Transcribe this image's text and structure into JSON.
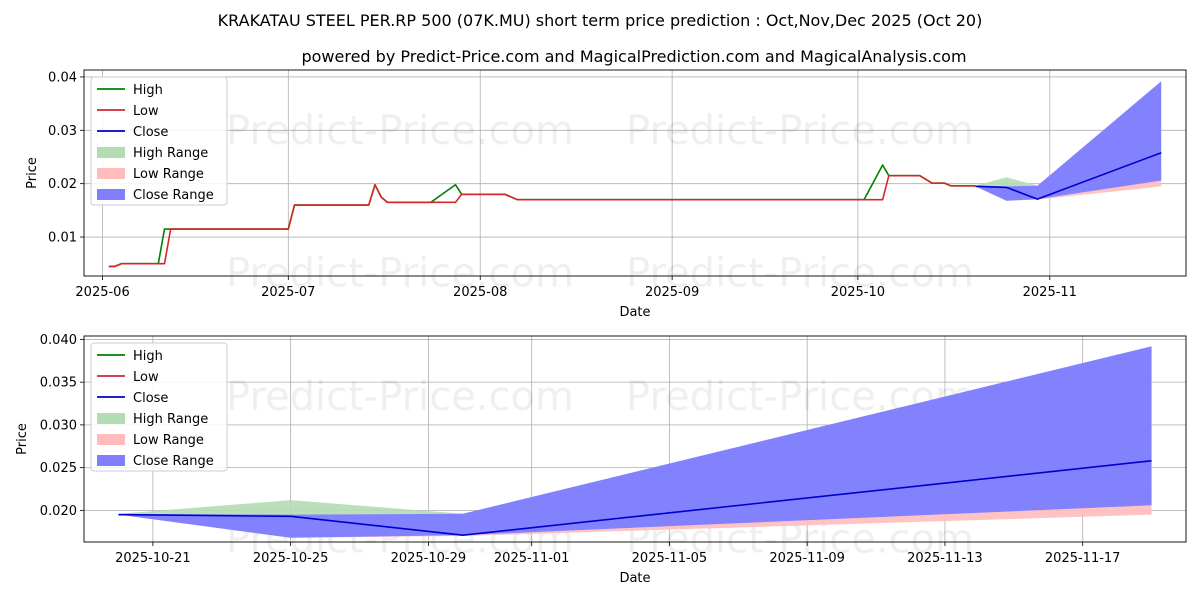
{
  "title": "KRAKATAU STEEL PER.RP 500 (07K.MU) short term price prediction : Oct,Nov,Dec 2025 (Oct 20)",
  "subtitle": "powered by Predict-Price.com and MagicalPrediction.com and MagicalAnalysis.com",
  "watermark": "Predict-Price.com",
  "colors": {
    "high": "#008000",
    "low": "#d62728",
    "close": "#0000cc",
    "high_range": "#b4dcb4",
    "low_range": "#ffbcbc",
    "close_range": "#8080ff"
  },
  "legend": [
    "High",
    "Low",
    "Close",
    "High Range",
    "Low Range",
    "Close Range"
  ],
  "chart_data": [
    {
      "type": "line",
      "xlabel": "Date",
      "ylabel": "Price",
      "legend_position": "upper-left",
      "grid": true,
      "xlim": [
        "2025-05-29",
        "2025-11-23"
      ],
      "ylim": [
        0.0027,
        0.0413
      ],
      "xticks": [
        "2025-06",
        "2025-07",
        "2025-08",
        "2025-09",
        "2025-10",
        "2025-11"
      ],
      "xtick_dates": [
        "2025-06-01",
        "2025-07-01",
        "2025-08-01",
        "2025-09-01",
        "2025-10-01",
        "2025-11-01"
      ],
      "yticks": [
        "0.01",
        "0.02",
        "0.03",
        "0.04"
      ],
      "ytick_values": [
        0.01,
        0.02,
        0.03,
        0.04
      ],
      "series": [
        {
          "name": "High",
          "points": [
            [
              "2025-06-02",
              0.0045
            ],
            [
              "2025-06-03",
              0.0045
            ],
            [
              "2025-06-04",
              0.005
            ],
            [
              "2025-06-10",
              0.005
            ],
            [
              "2025-06-11",
              0.0115
            ],
            [
              "2025-07-01",
              0.0115
            ],
            [
              "2025-07-02",
              0.016
            ],
            [
              "2025-07-14",
              0.016
            ],
            [
              "2025-07-15",
              0.0198
            ],
            [
              "2025-07-16",
              0.0175
            ],
            [
              "2025-07-17",
              0.0165
            ],
            [
              "2025-07-24",
              0.0165
            ],
            [
              "2025-07-28",
              0.0198
            ],
            [
              "2025-07-29",
              0.018
            ],
            [
              "2025-08-05",
              0.018
            ],
            [
              "2025-08-07",
              0.017
            ],
            [
              "2025-10-02",
              0.017
            ],
            [
              "2025-10-05",
              0.0235
            ],
            [
              "2025-10-06",
              0.0215
            ],
            [
              "2025-10-11",
              0.0215
            ],
            [
              "2025-10-13",
              0.0201
            ],
            [
              "2025-10-15",
              0.0201
            ],
            [
              "2025-10-16",
              0.0196
            ],
            [
              "2025-10-20",
              0.0196
            ]
          ]
        },
        {
          "name": "Low",
          "points": [
            [
              "2025-06-02",
              0.0045
            ],
            [
              "2025-06-03",
              0.0045
            ],
            [
              "2025-06-04",
              0.005
            ],
            [
              "2025-06-11",
              0.005
            ],
            [
              "2025-06-12",
              0.0115
            ],
            [
              "2025-07-01",
              0.0115
            ],
            [
              "2025-07-02",
              0.016
            ],
            [
              "2025-07-14",
              0.016
            ],
            [
              "2025-07-15",
              0.0198
            ],
            [
              "2025-07-16",
              0.0175
            ],
            [
              "2025-07-17",
              0.0165
            ],
            [
              "2025-07-28",
              0.0165
            ],
            [
              "2025-07-29",
              0.018
            ],
            [
              "2025-08-05",
              0.018
            ],
            [
              "2025-08-07",
              0.017
            ],
            [
              "2025-10-05",
              0.017
            ],
            [
              "2025-10-06",
              0.0215
            ],
            [
              "2025-10-11",
              0.0215
            ],
            [
              "2025-10-13",
              0.0201
            ],
            [
              "2025-10-15",
              0.0201
            ],
            [
              "2025-10-16",
              0.0196
            ],
            [
              "2025-10-20",
              0.0196
            ]
          ]
        },
        {
          "name": "Close",
          "points": [
            [
              "2025-10-20",
              0.0195
            ],
            [
              "2025-10-25",
              0.0193
            ],
            [
              "2025-10-30",
              0.0171
            ],
            [
              "2025-11-19",
              0.0258
            ]
          ]
        }
      ],
      "ranges": [
        {
          "name": "High Range",
          "x": [
            "2025-10-20",
            "2025-10-25",
            "2025-10-30",
            "2025-11-19"
          ],
          "upper": [
            0.0196,
            0.0212,
            0.0196,
            0.0196
          ],
          "lower": [
            0.0195,
            0.0193,
            0.0195,
            0.0196
          ]
        },
        {
          "name": "Low Range",
          "x": [
            "2025-10-20",
            "2025-10-25",
            "2025-10-30",
            "2025-11-19"
          ],
          "upper": [
            0.0195,
            0.0193,
            0.0175,
            0.0228
          ],
          "lower": [
            0.0195,
            0.0168,
            0.017,
            0.0195
          ]
        },
        {
          "name": "Close Range",
          "x": [
            "2025-10-20",
            "2025-10-25",
            "2025-10-30",
            "2025-11-19"
          ],
          "upper": [
            0.0196,
            0.0195,
            0.0196,
            0.0392
          ],
          "lower": [
            0.0195,
            0.0168,
            0.0171,
            0.0206
          ]
        }
      ]
    },
    {
      "type": "line",
      "xlabel": "Date",
      "ylabel": "Price",
      "legend_position": "upper-left",
      "grid": true,
      "xlim": [
        "2025-10-19",
        "2025-11-20"
      ],
      "ylim": [
        0.0163,
        0.0404
      ],
      "xticks": [
        "2025-10-21",
        "2025-10-25",
        "2025-10-29",
        "2025-11-01",
        "2025-11-05",
        "2025-11-09",
        "2025-11-13",
        "2025-11-17"
      ],
      "xtick_dates": [
        "2025-10-21",
        "2025-10-25",
        "2025-10-29",
        "2025-11-01",
        "2025-11-05",
        "2025-11-09",
        "2025-11-13",
        "2025-11-17"
      ],
      "yticks": [
        "0.020",
        "0.025",
        "0.030",
        "0.035",
        "0.040"
      ],
      "ytick_values": [
        0.02,
        0.025,
        0.03,
        0.035,
        0.04
      ],
      "series": [
        {
          "name": "Close",
          "points": [
            [
              "2025-10-20",
              0.0195
            ],
            [
              "2025-10-25",
              0.0193
            ],
            [
              "2025-10-30",
              0.0171
            ],
            [
              "2025-11-19",
              0.0258
            ]
          ]
        }
      ],
      "ranges": [
        {
          "name": "High Range",
          "x": [
            "2025-10-20",
            "2025-10-25",
            "2025-10-30",
            "2025-11-19"
          ],
          "upper": [
            0.0196,
            0.0212,
            0.0196,
            0.0196
          ],
          "lower": [
            0.0195,
            0.0193,
            0.0195,
            0.0196
          ]
        },
        {
          "name": "Low Range",
          "x": [
            "2025-10-20",
            "2025-10-25",
            "2025-10-30",
            "2025-11-19"
          ],
          "upper": [
            0.0195,
            0.0193,
            0.0175,
            0.0228
          ],
          "lower": [
            0.0195,
            0.0168,
            0.017,
            0.0195
          ]
        },
        {
          "name": "Close Range",
          "x": [
            "2025-10-20",
            "2025-10-25",
            "2025-10-30",
            "2025-11-19"
          ],
          "upper": [
            0.0196,
            0.0195,
            0.0196,
            0.0392
          ],
          "lower": [
            0.0195,
            0.0168,
            0.0171,
            0.0206
          ]
        }
      ]
    }
  ]
}
